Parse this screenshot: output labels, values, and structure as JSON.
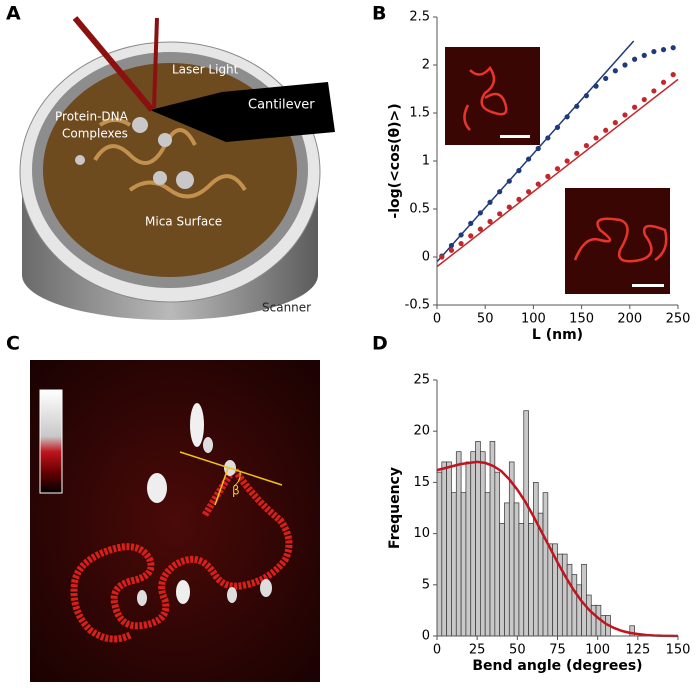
{
  "panel_labels": [
    "A",
    "B",
    "C",
    "D"
  ],
  "illustration": {
    "laser": "Laser Light",
    "cantilever": "Cantilever",
    "complexes": [
      "Protein-DNA",
      "Complexes"
    ],
    "surface": "Mica Surface",
    "scanner": "Scanner"
  },
  "afm_image": {
    "angle_label": "β"
  },
  "chart_data": [
    {
      "type": "scatter",
      "xlabel": "L (nm)",
      "ylabel": "-log(<cos(θ)>)",
      "x": [
        5,
        15,
        25,
        35,
        45,
        55,
        65,
        75,
        85,
        95,
        105,
        115,
        125,
        135,
        145,
        155,
        165,
        175,
        185,
        195,
        205,
        215,
        225,
        235,
        245
      ],
      "series": [
        {
          "color": "#1f3a7a",
          "values": [
            0.01,
            0.12,
            0.23,
            0.35,
            0.46,
            0.57,
            0.68,
            0.79,
            0.9,
            1.02,
            1.13,
            1.24,
            1.35,
            1.46,
            1.57,
            1.68,
            1.78,
            1.86,
            1.94,
            2.0,
            2.06,
            2.1,
            2.14,
            2.16,
            2.18
          ]
        },
        {
          "color": "#c0282d",
          "values": [
            0.0,
            0.07,
            0.14,
            0.22,
            0.29,
            0.37,
            0.45,
            0.52,
            0.6,
            0.68,
            0.76,
            0.84,
            0.92,
            1.0,
            1.08,
            1.16,
            1.24,
            1.32,
            1.4,
            1.48,
            1.56,
            1.64,
            1.73,
            1.82,
            1.9
          ]
        }
      ],
      "fit_lines": [
        {
          "color": "#1f3a7a",
          "x": [
            0,
            204
          ],
          "values": [
            -0.05,
            2.25
          ]
        },
        {
          "color": "#c0282d",
          "x": [
            0,
            250
          ],
          "values": [
            -0.1,
            1.85
          ]
        }
      ],
      "xlim": [
        0,
        250
      ],
      "xticks": [
        0,
        50,
        100,
        150,
        200,
        250
      ],
      "ylim": [
        -0.5,
        2.5
      ],
      "yticks": [
        -0.5,
        0,
        0.5,
        1,
        1.5,
        2,
        2.5
      ]
    },
    {
      "type": "histogram",
      "xlabel": "Bend angle (degrees)",
      "ylabel": "Frequency",
      "color": "#c8c8c8",
      "bins": [
        0,
        3,
        6,
        9,
        12,
        15,
        18,
        21,
        24,
        27,
        30,
        33,
        36,
        39,
        42,
        45,
        48,
        51,
        54,
        57,
        60,
        63,
        66,
        69,
        72,
        75,
        78,
        81,
        84,
        87,
        90,
        93,
        96,
        99,
        102,
        105,
        108,
        111,
        114,
        117,
        120,
        123
      ],
      "values": [
        16,
        17,
        17,
        14,
        18,
        14,
        17,
        18,
        19,
        18,
        14,
        19,
        16,
        11,
        13,
        17,
        13,
        11,
        22,
        11,
        15,
        12,
        14,
        9,
        9,
        8,
        8,
        7,
        6,
        5,
        7,
        4,
        3,
        3,
        2,
        2,
        0,
        0,
        0,
        0,
        1
      ],
      "fit": {
        "color": "#c0141e",
        "x": [
          0,
          5,
          10,
          15,
          20,
          25,
          30,
          35,
          40,
          45,
          50,
          55,
          60,
          65,
          70,
          75,
          80,
          85,
          90,
          95,
          100,
          105,
          110,
          115,
          120,
          125,
          130,
          135,
          140,
          145,
          150
        ],
        "values": [
          16.2,
          16.4,
          16.6,
          16.8,
          16.9,
          17,
          16.9,
          16.6,
          16.1,
          15.3,
          14.3,
          13.1,
          11.7,
          10.2,
          8.7,
          7.2,
          5.8,
          4.5,
          3.4,
          2.5,
          1.8,
          1.2,
          0.8,
          0.5,
          0.3,
          0.2,
          0.1,
          0.05,
          0.02,
          0.01,
          0
        ]
      },
      "xlim": [
        0,
        150
      ],
      "xticks": [
        0,
        25,
        50,
        75,
        100,
        125,
        150
      ],
      "ylim": [
        0,
        25
      ],
      "yticks": [
        0,
        5,
        10,
        15,
        20,
        25
      ]
    }
  ]
}
